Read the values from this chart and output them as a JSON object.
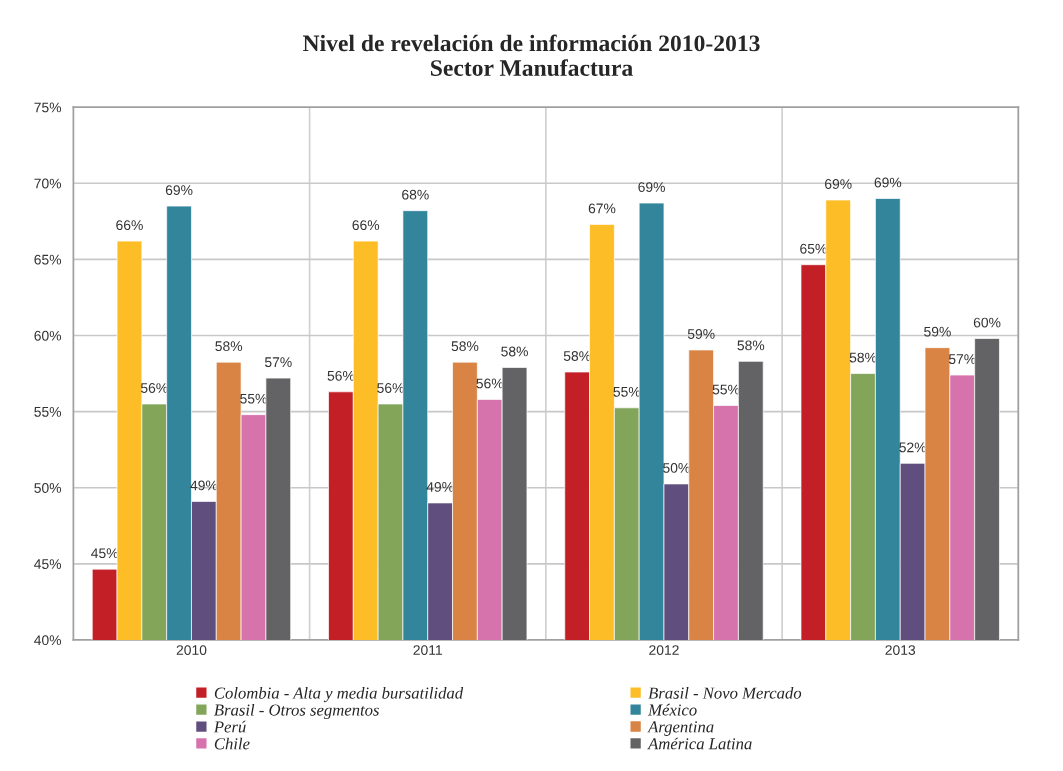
{
  "chart_data": {
    "type": "bar",
    "title": "Nivel de revelación de información 2010-2013\nSector Manufactura",
    "categories": [
      "2010",
      "2011",
      "2012",
      "2013"
    ],
    "ylim": [
      40,
      75
    ],
    "yticks": [
      {
        "value": 40,
        "label": "40%"
      },
      {
        "value": 45,
        "label": "45%"
      },
      {
        "value": 50,
        "label": "50%"
      },
      {
        "value": 55,
        "label": "55%"
      },
      {
        "value": 60,
        "label": "60%"
      },
      {
        "value": 65,
        "label": "65%"
      },
      {
        "value": 70,
        "label": "70%"
      },
      {
        "value": 75,
        "label": "75%"
      }
    ],
    "grid": true,
    "legend": "bottom",
    "series": [
      {
        "name": "Colombia - Alta y media bursatilidad",
        "color": "#c21f26",
        "values": [
          44.65,
          56.3,
          57.6,
          64.65
        ],
        "value_labels": [
          "45%",
          "56%",
          "58%",
          "65%"
        ]
      },
      {
        "name": "Brasil - Novo Mercado",
        "color": "#fdbd26",
        "values": [
          66.2,
          66.2,
          67.3,
          68.9
        ],
        "value_labels": [
          "66%",
          "66%",
          "67%",
          "69%"
        ]
      },
      {
        "name": "Brasil - Otros segmentos",
        "color": "#82a55a",
        "values": [
          55.5,
          55.5,
          55.25,
          57.5
        ],
        "value_labels": [
          "56%",
          "56%",
          "55%",
          "58%"
        ]
      },
      {
        "name": "México",
        "color": "#33859b",
        "values": [
          68.5,
          68.2,
          68.7,
          69.0
        ],
        "value_labels": [
          "69%",
          "68%",
          "69%",
          "69%"
        ]
      },
      {
        "name": "Perú",
        "color": "#604f7e",
        "values": [
          49.1,
          49.0,
          50.25,
          51.6
        ],
        "value_labels": [
          "49%",
          "49%",
          "50%",
          "52%"
        ]
      },
      {
        "name": "Argentina",
        "color": "#d98444",
        "values": [
          58.25,
          58.25,
          59.05,
          59.2
        ],
        "value_labels": [
          "58%",
          "58%",
          "59%",
          "59%"
        ]
      },
      {
        "name": "Chile",
        "color": "#d673ad",
        "values": [
          54.8,
          55.8,
          55.4,
          57.4
        ],
        "value_labels": [
          "55%",
          "56%",
          "55%",
          "57%"
        ]
      },
      {
        "name": "América Latina",
        "color": "#636365",
        "values": [
          57.2,
          57.9,
          58.3,
          59.8
        ],
        "value_labels": [
          "57%",
          "58%",
          "58%",
          "60%"
        ]
      }
    ]
  }
}
